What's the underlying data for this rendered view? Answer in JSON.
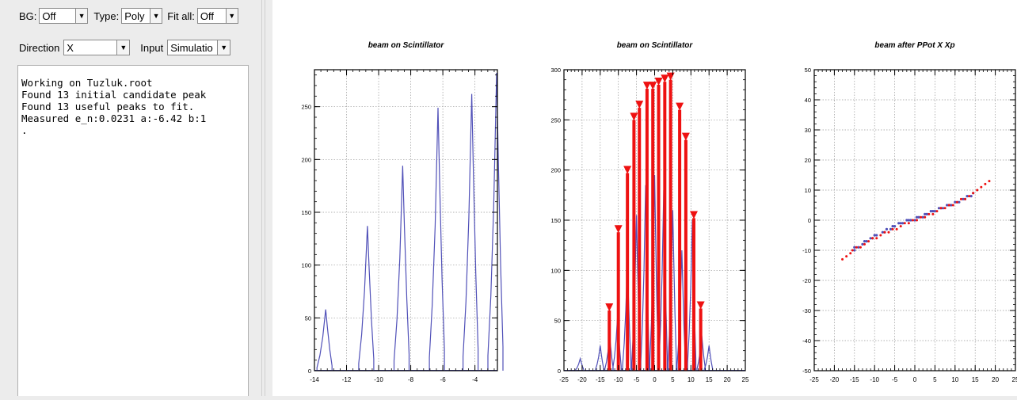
{
  "controls": {
    "bg_label": "BG:",
    "bg_value": "Off",
    "type_label": "Type:",
    "type_value": "Poly",
    "fitall_label": "Fit all:",
    "fitall_value": "Off",
    "direction_label": "Direction",
    "direction_value": "X",
    "input_label": "Input",
    "input_value": "Simulatio"
  },
  "console": {
    "lines": [
      "Working on Tuzluk.root",
      "Found 13 initial candidate peak",
      "Found 13 useful peaks to fit.",
      "Measured e_n:0.0231 a:-6.42 b:1",
      "."
    ]
  },
  "colors": {
    "hist": "#5050b8",
    "marker": "#ee1111",
    "grid": "#999999"
  },
  "chart_data": [
    {
      "type": "histogram",
      "title": "beam on Scintillator",
      "xlim": [
        -14,
        -2.6
      ],
      "ylim": [
        0,
        285
      ],
      "xticks": [
        -14,
        -12,
        -10,
        -8,
        -6,
        -4
      ],
      "yticks": [
        0,
        50,
        100,
        150,
        200,
        250
      ],
      "peaks": [
        {
          "x": -13.3,
          "y": 58
        },
        {
          "x": -10.7,
          "y": 137
        },
        {
          "x": -8.5,
          "y": 194
        },
        {
          "x": -6.3,
          "y": 249
        },
        {
          "x": -4.2,
          "y": 262
        },
        {
          "x": -2.65,
          "y": 282
        }
      ]
    },
    {
      "type": "histogram",
      "title": "beam on Scintillator",
      "xlim": [
        -25,
        25
      ],
      "ylim": [
        0,
        300
      ],
      "xticks": [
        -25,
        -20,
        -15,
        -10,
        -5,
        0,
        5,
        10,
        15,
        20,
        25
      ],
      "yticks": [
        0,
        50,
        100,
        150,
        200,
        250,
        300
      ],
      "hist_peaks": [
        {
          "x": -20.5,
          "y": 12
        },
        {
          "x": -15,
          "y": 25
        },
        {
          "x": -12.4,
          "y": 35
        },
        {
          "x": -10.2,
          "y": 55
        },
        {
          "x": -7.5,
          "y": 110
        },
        {
          "x": -5,
          "y": 155
        },
        {
          "x": -2.5,
          "y": 185
        },
        {
          "x": 0,
          "y": 195
        },
        {
          "x": 2.5,
          "y": 180
        },
        {
          "x": 5,
          "y": 160
        },
        {
          "x": 7.5,
          "y": 120
        },
        {
          "x": 10.4,
          "y": 150
        },
        {
          "x": 13,
          "y": 35
        },
        {
          "x": 15,
          "y": 25
        }
      ],
      "markers": [
        {
          "x": -12.5,
          "y": 60
        },
        {
          "x": -10,
          "y": 138
        },
        {
          "x": -7.5,
          "y": 197
        },
        {
          "x": -5.7,
          "y": 250
        },
        {
          "x": -4.2,
          "y": 262
        },
        {
          "x": -2.1,
          "y": 281
        },
        {
          "x": -0.5,
          "y": 281
        },
        {
          "x": 1.1,
          "y": 285
        },
        {
          "x": 2.8,
          "y": 288
        },
        {
          "x": 4.4,
          "y": 290
        },
        {
          "x": 6.9,
          "y": 260
        },
        {
          "x": 8.6,
          "y": 230
        },
        {
          "x": 10.8,
          "y": 152
        },
        {
          "x": 12.7,
          "y": 62
        }
      ]
    },
    {
      "type": "scatter",
      "title": "beam after PPot X Xp",
      "xlim": [
        -25,
        25
      ],
      "ylim": [
        -50,
        50
      ],
      "xticks": [
        -25,
        -20,
        -15,
        -10,
        -5,
        0,
        5,
        10,
        15,
        20,
        25
      ],
      "yticks": [
        -50,
        -40,
        -30,
        -20,
        -10,
        0,
        10,
        20,
        30,
        40,
        50
      ],
      "blue_points": [
        [
          -15,
          -9
        ],
        [
          -15,
          -10
        ],
        [
          -14,
          -9
        ],
        [
          -13,
          -8
        ],
        [
          -12.5,
          -7
        ],
        [
          -12,
          -7
        ],
        [
          -11,
          -6
        ],
        [
          -10.5,
          -6
        ],
        [
          -10,
          -5
        ],
        [
          -9.5,
          -5
        ],
        [
          -8,
          -4
        ],
        [
          -7.5,
          -4
        ],
        [
          -7,
          -3
        ],
        [
          -6,
          -3
        ],
        [
          -5.5,
          -2
        ],
        [
          -5,
          -2
        ],
        [
          -4,
          -1
        ],
        [
          -3.5,
          -1
        ],
        [
          -3,
          -1
        ],
        [
          -2,
          0
        ],
        [
          -1.5,
          0
        ],
        [
          -1,
          0
        ],
        [
          0,
          0
        ],
        [
          0.5,
          1
        ],
        [
          1,
          1
        ],
        [
          2,
          1
        ],
        [
          2.5,
          2
        ],
        [
          3,
          2
        ],
        [
          4,
          3
        ],
        [
          4.5,
          3
        ],
        [
          5,
          3
        ],
        [
          6,
          4
        ],
        [
          6.5,
          4
        ],
        [
          7,
          4
        ],
        [
          8,
          5
        ],
        [
          8.5,
          5
        ],
        [
          9,
          5
        ],
        [
          10,
          6
        ],
        [
          10.5,
          6
        ],
        [
          11,
          6
        ],
        [
          12,
          7
        ],
        [
          12.5,
          7
        ],
        [
          13,
          8
        ],
        [
          14,
          8
        ],
        [
          14.5,
          9
        ]
      ],
      "red_points": [
        [
          -18,
          -13
        ],
        [
          -17,
          -12
        ],
        [
          -16,
          -11
        ],
        [
          -15.5,
          -10
        ],
        [
          -14.5,
          -9
        ],
        [
          -13.5,
          -9
        ],
        [
          -12.5,
          -8
        ],
        [
          -11.5,
          -7
        ],
        [
          -10.5,
          -6
        ],
        [
          -9.5,
          -6
        ],
        [
          -8.5,
          -5
        ],
        [
          -7.5,
          -4
        ],
        [
          -6.5,
          -4
        ],
        [
          -5.5,
          -3
        ],
        [
          -4.5,
          -3
        ],
        [
          -3.5,
          -2
        ],
        [
          -2.5,
          -1
        ],
        [
          -1.5,
          -1
        ],
        [
          -0.5,
          0
        ],
        [
          0.5,
          0
        ],
        [
          1.5,
          1
        ],
        [
          2.5,
          1
        ],
        [
          3.5,
          2
        ],
        [
          4.5,
          2
        ],
        [
          5.5,
          3
        ],
        [
          6.5,
          4
        ],
        [
          7.5,
          4
        ],
        [
          8.5,
          5
        ],
        [
          9.5,
          5
        ],
        [
          10.5,
          6
        ],
        [
          11.5,
          7
        ],
        [
          12.5,
          7
        ],
        [
          13.5,
          8
        ],
        [
          14.5,
          9
        ],
        [
          15.5,
          10
        ],
        [
          16.5,
          11
        ],
        [
          17.5,
          12
        ],
        [
          18.5,
          13
        ]
      ]
    }
  ]
}
